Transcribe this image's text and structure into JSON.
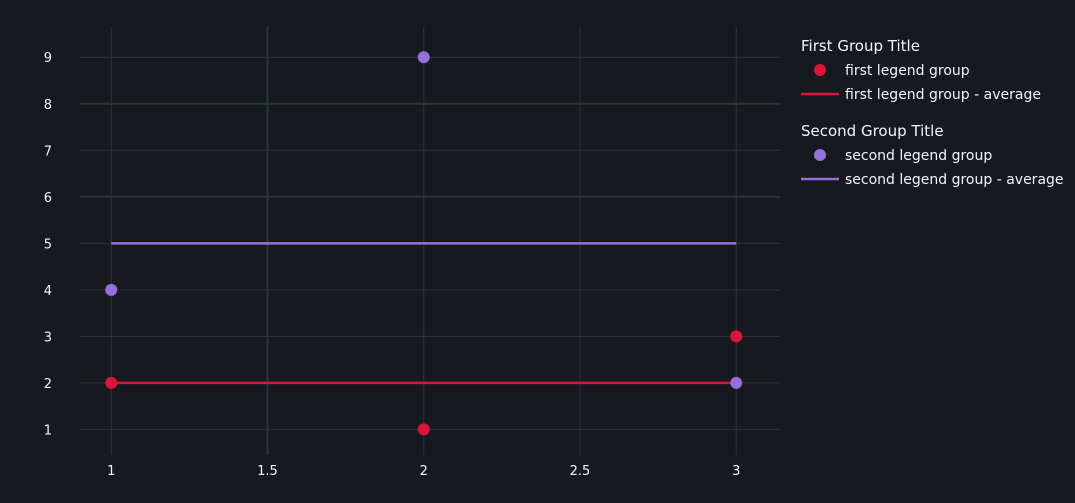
{
  "chart_data": {
    "type": "scatter",
    "title": "",
    "xlabel": "",
    "ylabel": "",
    "xlim": [
      0.9,
      3.14
    ],
    "ylim": [
      0.45,
      9.65
    ],
    "x_ticks": [
      1,
      1.5,
      2,
      2.5,
      3
    ],
    "x_tick_labels": [
      "1",
      "1.5",
      "2",
      "2.5",
      "3"
    ],
    "y_ticks": [
      1,
      2,
      3,
      4,
      5,
      6,
      7,
      8,
      9
    ],
    "y_tick_labels": [
      "1",
      "2",
      "3",
      "4",
      "5",
      "6",
      "7",
      "8",
      "9"
    ],
    "grid": true,
    "legend_position": "top-right",
    "legend_groups": [
      {
        "title": "First Group Title",
        "entries": [
          {
            "name": "first legend group",
            "marker": "circle",
            "color": "#dc143c"
          },
          {
            "name": "first legend group - average",
            "marker": "line",
            "color": "#dc143c"
          }
        ]
      },
      {
        "title": "Second Group Title",
        "entries": [
          {
            "name": "second legend group",
            "marker": "circle",
            "color": "#9370db"
          },
          {
            "name": "second legend group - average",
            "marker": "line",
            "color": "#9370db"
          }
        ]
      }
    ],
    "series": [
      {
        "name": "first legend group",
        "type": "scatter",
        "color": "#dc143c",
        "x": [
          1,
          2,
          3
        ],
        "y": [
          2,
          1,
          3
        ]
      },
      {
        "name": "first legend group - average",
        "type": "line",
        "color": "#dc143c",
        "x": [
          1,
          3
        ],
        "y": [
          2,
          2
        ]
      },
      {
        "name": "second legend group",
        "type": "scatter",
        "color": "#9370db",
        "x": [
          1,
          2,
          3
        ],
        "y": [
          4,
          9,
          2
        ]
      },
      {
        "name": "second legend group - average",
        "type": "line",
        "color": "#9370db",
        "x": [
          1,
          3
        ],
        "y": [
          5,
          5
        ]
      }
    ],
    "colors": {
      "background": "#16191d",
      "grid": "#283442",
      "text": "#f2f5fa"
    }
  }
}
